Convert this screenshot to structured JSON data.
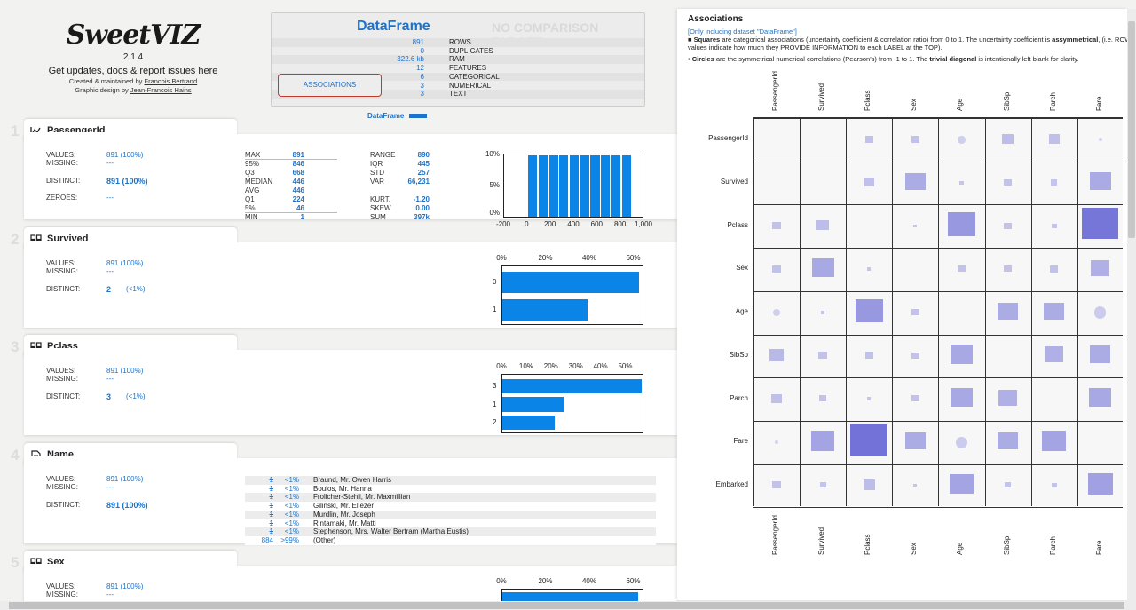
{
  "header": {
    "brand": "SweetVIZ",
    "version": "2.1.4",
    "updates": "Get updates, docs & report issues here",
    "created_prefix": "Created & maintained by",
    "author": "Francois Bertrand",
    "design_prefix": "Graphic design by",
    "designer": "Jean-Francois Hains"
  },
  "dataframe": {
    "title": "DataFrame",
    "no_comparison": "NO COMPARISON TARGET",
    "rows": [
      {
        "v": "891",
        "k": "ROWS"
      },
      {
        "v": "0",
        "k": "DUPLICATES"
      },
      {
        "v": "322.6 kb",
        "k": "RAM"
      },
      {
        "v": "12",
        "k": "FEATURES"
      },
      {
        "v": "6",
        "k": "CATEGORICAL"
      },
      {
        "v": "3",
        "k": "NUMERICAL"
      },
      {
        "v": "3",
        "k": "TEXT"
      }
    ],
    "associations_button": "ASSOCIATIONS",
    "legend": "DataFrame"
  },
  "features": [
    {
      "num": "1",
      "name": "PassengerId",
      "icon": "numeric-chart-icon",
      "values": "891 (100%)",
      "missing": "---",
      "distinct": "891 (100%)",
      "zeroes": "---",
      "stats_left": [
        [
          "MAX",
          "891"
        ],
        [
          "95%",
          "846"
        ],
        [
          "Q3",
          "668"
        ],
        [
          "MEDIAN",
          "446"
        ],
        [
          "AVG",
          "446"
        ],
        [
          "Q1",
          "224"
        ],
        [
          "5%",
          "46"
        ],
        [
          "MIN",
          "1"
        ]
      ],
      "stats_right": [
        [
          "RANGE",
          "890"
        ],
        [
          "IQR",
          "445"
        ],
        [
          "STD",
          "257"
        ],
        [
          "VAR",
          "66,231"
        ],
        [
          "",
          ""
        ],
        [
          "KURT.",
          "-1.20"
        ],
        [
          "SKEW",
          "0.00"
        ],
        [
          "SUM",
          "397k"
        ]
      ],
      "chart_data": {
        "type": "bar",
        "title": "PassengerId histogram",
        "x_ticks": [
          "-200",
          "0",
          "200",
          "400",
          "600",
          "800",
          "1,000"
        ],
        "y_ticks": [
          "10%",
          "5%",
          "0%"
        ],
        "xlim": [
          -200,
          1000
        ],
        "ylim": [
          0,
          10
        ],
        "bins": [
          [
            1,
            90
          ],
          [
            90,
            179
          ],
          [
            179,
            268
          ],
          [
            268,
            357
          ],
          [
            357,
            446
          ],
          [
            446,
            535
          ],
          [
            535,
            624
          ],
          [
            624,
            713
          ],
          [
            713,
            802
          ],
          [
            802,
            891
          ]
        ],
        "values": [
          10,
          10,
          10,
          10,
          10,
          10,
          10,
          10,
          10,
          10
        ]
      }
    },
    {
      "num": "2",
      "name": "Survived",
      "icon": "categorical-icon",
      "values": "891 (100%)",
      "missing": "---",
      "distinct": "2",
      "distinct_pct": "(<1%)",
      "chart_data": {
        "type": "bar",
        "orientation": "horizontal",
        "categories": [
          "0",
          "1"
        ],
        "values": [
          61.6,
          38.4
        ],
        "x_ticks": [
          "0%",
          "20%",
          "40%",
          "60%"
        ],
        "xlim": [
          0,
          64
        ]
      }
    },
    {
      "num": "3",
      "name": "Pclass",
      "icon": "categorical-icon",
      "values": "891 (100%)",
      "missing": "---",
      "distinct": "3",
      "distinct_pct": "(<1%)",
      "chart_data": {
        "type": "bar",
        "orientation": "horizontal",
        "categories": [
          "3",
          "1",
          "2"
        ],
        "values": [
          55.1,
          24.2,
          20.7
        ],
        "x_ticks": [
          "0%",
          "10%",
          "20%",
          "30%",
          "40%",
          "50%"
        ],
        "xlim": [
          0,
          56
        ]
      }
    },
    {
      "num": "4",
      "name": "Name",
      "icon": "text-icon",
      "values": "891 (100%)",
      "missing": "---",
      "distinct": "891 (100%)",
      "top_values": [
        [
          "1",
          "<1%",
          "Braund, Mr. Owen Harris"
        ],
        [
          "1",
          "<1%",
          "Boulos, Mr. Hanna"
        ],
        [
          "1",
          "<1%",
          "Frolicher-Stehli, Mr. Maxmillian"
        ],
        [
          "1",
          "<1%",
          "Gilinski, Mr. Eliezer"
        ],
        [
          "1",
          "<1%",
          "Murdlin, Mr. Joseph"
        ],
        [
          "1",
          "<1%",
          "Rintamaki, Mr. Matti"
        ],
        [
          "1",
          "<1%",
          "Stephenson, Mrs. Walter Bertram (Martha Eustis)"
        ],
        [
          "884",
          ">99%",
          "(Other)"
        ]
      ]
    },
    {
      "num": "5",
      "name": "Sex",
      "icon": "categorical-icon",
      "values": "891 (100%)",
      "missing": "---",
      "chart_data": {
        "type": "bar",
        "orientation": "horizontal",
        "x_ticks": [
          "0%",
          "20%",
          "40%",
          "60%"
        ]
      }
    }
  ],
  "labels": {
    "values": "VALUES:",
    "missing": "MISSING:",
    "distinct": "DISTINCT:",
    "zeroes": "ZEROES:"
  },
  "associations": {
    "title": "Associations",
    "note": "[Only including dataset \"DataFrame\"]",
    "line1_bold": "Squares",
    "line1": " are categorical associations (uncertainty coefficient & correlation ratio) from 0 to 1. The uncertainty coefficient is ",
    "line1_bold2": "assymmetrical",
    "line1_end": ", (i.e. ROW",
    "line2": "values indicate how much they PROVIDE INFORMATION to each LABEL at the TOP).",
    "line3_a": "• ",
    "line3_bold": "Circles",
    "line3": " are the symmetrical numerical correlations (Pearson's) from -1 to 1. The ",
    "line3_bold2": "trivial diagonal",
    "line3_end": " is intentionally left blank for clarity.",
    "cols": [
      "PassengerId",
      "Survived",
      "Pclass",
      "Sex",
      "Age",
      "SibSp",
      "Parch",
      "Fare"
    ],
    "rows": [
      "PassengerId",
      "Survived",
      "Pclass",
      "Sex",
      "Age",
      "SibSp",
      "Parch",
      "Fare",
      "Embarked"
    ],
    "chart_data": {
      "type": "heatmap",
      "shape_note": "s = square (categorical), c = circle (numerical)",
      "cells": [
        [
          null,
          null,
          [
            "s",
            0.05
          ],
          [
            "s",
            0.05
          ],
          [
            "c",
            0.04
          ],
          [
            "s",
            0.1
          ],
          [
            "s",
            0.08
          ],
          [
            "c",
            0.01
          ]
        ],
        [
          null,
          null,
          [
            "s",
            0.07
          ],
          [
            "s",
            0.3
          ],
          [
            "s",
            0.01
          ],
          [
            "s",
            0.04
          ],
          [
            "s",
            0.03
          ],
          [
            "s",
            0.32
          ]
        ],
        [
          [
            "s",
            0.05
          ],
          [
            "s",
            0.1
          ],
          null,
          [
            "s",
            0.01
          ],
          [
            "s",
            0.55
          ],
          [
            "s",
            0.04
          ],
          [
            "s",
            0.02
          ],
          [
            "s",
            0.95
          ]
        ],
        [
          [
            "s",
            0.05
          ],
          [
            "s",
            0.35
          ],
          [
            "s",
            0.01
          ],
          null,
          [
            "s",
            0.04
          ],
          [
            "s",
            0.04
          ],
          [
            "s",
            0.05
          ],
          [
            "s",
            0.25
          ]
        ],
        [
          [
            "c",
            0.04
          ],
          [
            "s",
            0.01
          ],
          [
            "s",
            0.55
          ],
          [
            "s",
            0.04
          ],
          null,
          [
            "s",
            0.3
          ],
          [
            "s",
            0.3
          ],
          [
            "c",
            0.1
          ]
        ],
        [
          [
            "s",
            0.15
          ],
          [
            "s",
            0.05
          ],
          [
            "s",
            0.05
          ],
          [
            "s",
            0.04
          ],
          [
            "s",
            0.35
          ],
          null,
          [
            "s",
            0.25
          ],
          [
            "s",
            0.3
          ]
        ],
        [
          [
            "s",
            0.08
          ],
          [
            "s",
            0.04
          ],
          [
            "s",
            0.01
          ],
          [
            "s",
            0.04
          ],
          [
            "s",
            0.35
          ],
          [
            "s",
            0.25
          ],
          null,
          [
            "s",
            0.35
          ]
        ],
        [
          [
            "c",
            0.01
          ],
          [
            "s",
            0.4
          ],
          [
            "s",
            1.0
          ],
          [
            "s",
            0.3
          ],
          [
            "c",
            0.1
          ],
          [
            "s",
            0.3
          ],
          [
            "s",
            0.4
          ],
          null
        ],
        [
          [
            "s",
            0.05
          ],
          [
            "s",
            0.03
          ],
          [
            "s",
            0.1
          ],
          [
            "s",
            0.01
          ],
          [
            "s",
            0.4
          ],
          [
            "s",
            0.03
          ],
          [
            "s",
            0.02
          ],
          [
            "s",
            0.45
          ]
        ]
      ]
    }
  },
  "colors": {
    "accent": "#1d73c9",
    "bar": "#0a84e6",
    "assoc": "#6a6ad6"
  }
}
